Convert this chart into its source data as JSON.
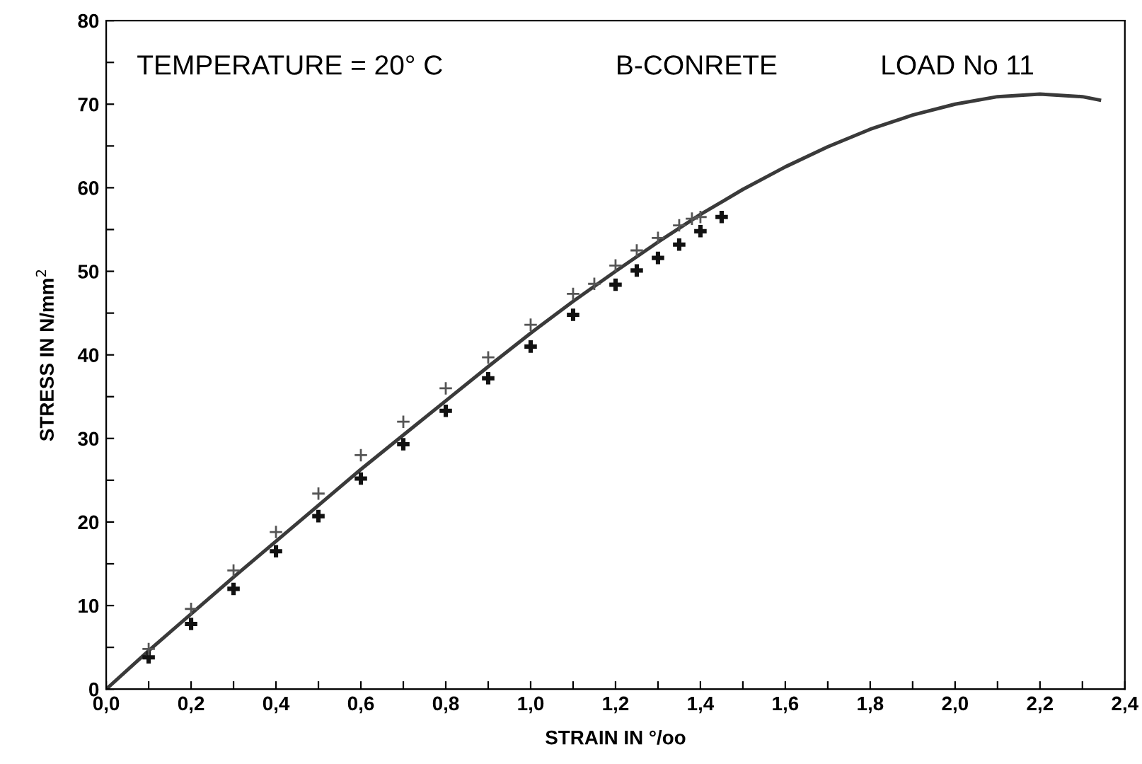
{
  "chart_data": {
    "type": "line",
    "xlabel": "STRAIN IN °/oo",
    "ylabel": "STRESS IN N/mm$^{2}$",
    "annotations": [
      "TEMPERATURE = 20° C",
      "B-CONRETE",
      "LOAD No 11"
    ],
    "xlim": [
      0,
      2.4
    ],
    "ylim": [
      0,
      80
    ],
    "xticks": [
      {
        "value": 0,
        "label": "0,0"
      },
      {
        "value": 0.1,
        "label": null
      },
      {
        "value": 0.2,
        "label": "0,2"
      },
      {
        "value": 0.3,
        "label": null
      },
      {
        "value": 0.4,
        "label": "0,4"
      },
      {
        "value": 0.5,
        "label": null
      },
      {
        "value": 0.6,
        "label": "0,6"
      },
      {
        "value": 0.7,
        "label": null
      },
      {
        "value": 0.8,
        "label": "0,8"
      },
      {
        "value": 0.9,
        "label": null
      },
      {
        "value": 1.0,
        "label": "1,0"
      },
      {
        "value": 1.1,
        "label": null
      },
      {
        "value": 1.2,
        "label": "1,2"
      },
      {
        "value": 1.3,
        "label": null
      },
      {
        "value": 1.4,
        "label": "1,4"
      },
      {
        "value": 1.5,
        "label": null
      },
      {
        "value": 1.6,
        "label": "1,6"
      },
      {
        "value": 1.7,
        "label": null
      },
      {
        "value": 1.8,
        "label": "1,8"
      },
      {
        "value": 1.9,
        "label": null
      },
      {
        "value": 2.0,
        "label": "2,0"
      },
      {
        "value": 2.1,
        "label": null
      },
      {
        "value": 2.2,
        "label": "2,2"
      },
      {
        "value": 2.3,
        "label": null
      },
      {
        "value": 2.4,
        "label": "2,4"
      }
    ],
    "yticks": [
      0,
      {
        "value": 5,
        "label": null
      },
      10,
      {
        "value": 15,
        "label": null
      },
      20,
      {
        "value": 25,
        "label": null
      },
      30,
      {
        "value": 35,
        "label": null
      },
      40,
      {
        "value": 45,
        "label": null
      },
      50,
      {
        "value": 55,
        "label": null
      },
      60,
      {
        "value": 65,
        "label": null
      },
      70,
      {
        "value": 75,
        "label": null
      },
      80
    ],
    "grid": false,
    "legend": false,
    "series": [
      {
        "color": "#3a3a3a",
        "line_style": "solid",
        "marker": "none",
        "x": [
          0,
          0.1,
          0.2,
          0.3,
          0.4,
          0.5,
          0.6,
          0.7,
          0.8,
          0.9,
          1.0,
          1.1,
          1.2,
          1.3,
          1.4,
          1.5,
          1.6,
          1.7,
          1.8,
          1.9,
          2.0,
          2.1,
          2.2,
          2.3,
          2.34
        ],
        "values": [
          0,
          4.6,
          9.0,
          13.4,
          17.7,
          22.0,
          26.3,
          30.4,
          34.5,
          38.6,
          42.6,
          46.4,
          50.0,
          53.5,
          56.8,
          59.8,
          62.5,
          64.9,
          67.0,
          68.7,
          70.0,
          70.9,
          71.2,
          70.9,
          70.5
        ]
      },
      {
        "type": "scatter",
        "color": "#555555",
        "marker": "cross",
        "x": [
          0.1,
          0.2,
          0.3,
          0.4,
          0.5,
          0.6,
          0.7,
          0.8,
          0.9,
          1.0,
          1.1,
          1.15,
          1.2,
          1.25,
          1.3,
          1.35,
          1.38,
          1.4
        ],
        "values": [
          4.8,
          9.6,
          14.2,
          18.8,
          23.4,
          28.0,
          32.0,
          36.0,
          39.7,
          43.6,
          47.3,
          48.5,
          50.7,
          52.5,
          54.0,
          55.5,
          56.3,
          56.5
        ]
      },
      {
        "type": "scatter",
        "color": "#111111",
        "marker": "cross",
        "x": [
          0.1,
          0.2,
          0.3,
          0.4,
          0.5,
          0.6,
          0.7,
          0.8,
          0.9,
          1.0,
          1.1,
          1.2,
          1.25,
          1.3,
          1.35,
          1.4,
          1.45
        ],
        "values": [
          3.8,
          7.8,
          12.0,
          16.5,
          20.7,
          25.2,
          29.3,
          33.3,
          37.2,
          41.0,
          44.8,
          48.4,
          50.1,
          51.6,
          53.2,
          54.8,
          56.5
        ]
      }
    ]
  }
}
